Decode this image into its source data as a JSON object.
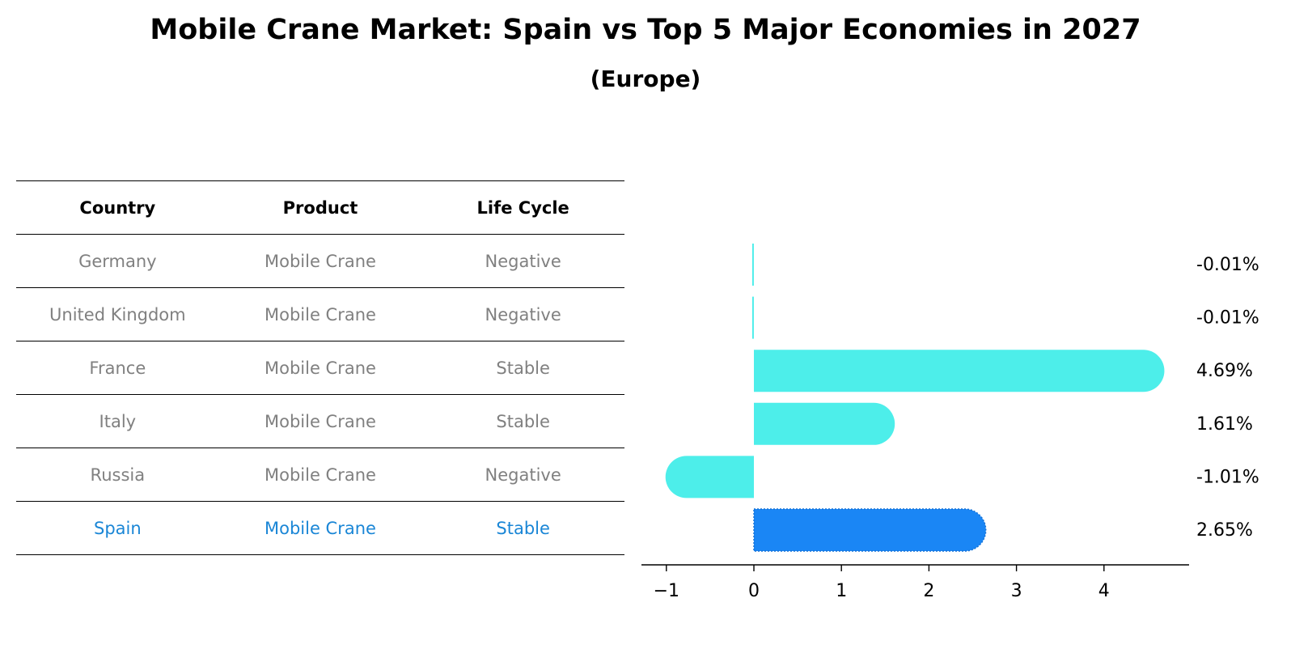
{
  "header": {
    "title": "Mobile Crane Market: Spain vs Top 5 Major Economies in 2027",
    "subtitle": "(Europe)"
  },
  "table": {
    "columns": [
      "Country",
      "Product",
      "Life Cycle"
    ],
    "rows": [
      [
        "Germany",
        "Mobile Crane",
        "Negative"
      ],
      [
        "United Kingdom",
        "Mobile Crane",
        "Negative"
      ],
      [
        "France",
        "Mobile Crane",
        "Stable"
      ],
      [
        "Italy",
        "Mobile Crane",
        "Stable"
      ],
      [
        "Russia",
        "Mobile Crane",
        "Negative"
      ],
      [
        "Spain",
        "Mobile Crane",
        "Stable"
      ]
    ],
    "highlight_row": 5
  },
  "colors": {
    "bar": "#4deeea",
    "highlight_bar": "#1a86f5",
    "highlight_text": "#1a86d6",
    "muted_text": "#808080"
  },
  "chart_data": {
    "type": "bar",
    "orientation": "horizontal",
    "categories": [
      "Germany",
      "United Kingdom",
      "France",
      "Italy",
      "Russia",
      "Spain"
    ],
    "values": [
      -0.01,
      -0.01,
      4.69,
      1.61,
      -1.01,
      2.65
    ],
    "data_labels": [
      "-0.01%",
      "-0.01%",
      "4.69%",
      "1.61%",
      "-1.01%",
      "2.65%"
    ],
    "xticks": [
      -1,
      0,
      1,
      2,
      3,
      4
    ],
    "xtick_labels": [
      "−1",
      "0",
      "1",
      "2",
      "3",
      "4"
    ],
    "xlim": [
      -1.3,
      4.95
    ],
    "grid": false,
    "highlight_index": 5
  }
}
